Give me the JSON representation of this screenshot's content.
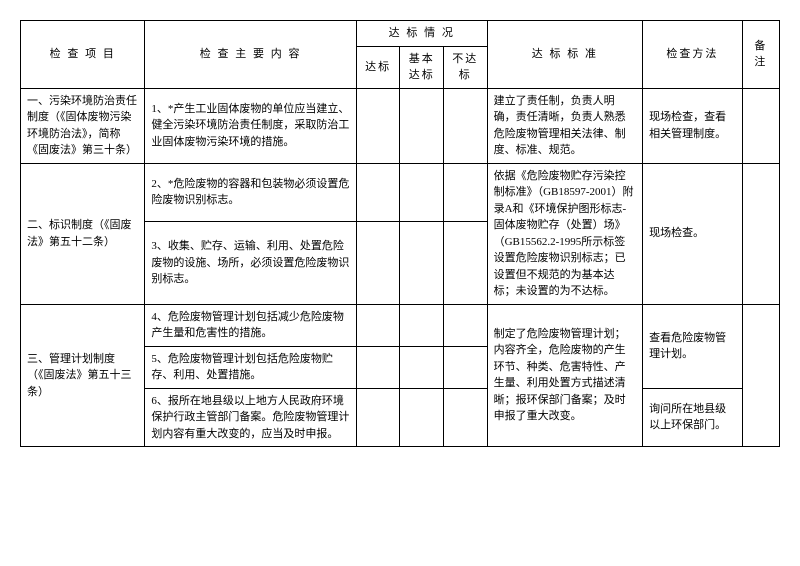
{
  "headers": {
    "project": "检 查 项 目",
    "content": "检 查 主 要 内 容",
    "statusGroup": "达 标 情 况",
    "status1": "达标",
    "status2": "基本达标",
    "status3": "不达标",
    "standard": "达 标 标 准",
    "method": "检查方法",
    "note": "备注"
  },
  "rows": {
    "r1": {
      "project": "一、污染环境防治责任制度（《固体废物污染环境防治法》，简称《固废法》第三十条）",
      "content": "1、*产生工业固体废物的单位应当建立、健全污染环境防治责任制度，采取防治工业固体废物污染环境的措施。",
      "standard": "建立了责任制，负责人明确，责任清晰，负责人熟悉危险废物管理相关法律、制度、标准、规范。",
      "method": "现场检查，查看相关管理制度。"
    },
    "r2": {
      "project": "二、标识制度（《固废法》第五十二条）",
      "content2a": "2、*危险废物的容器和包装物必须设置危险废物识别标志。",
      "content2b": "3、收集、贮存、运输、利用、处置危险废物的设施、场所，必须设置危险废物识别标志。",
      "standard": "依据《危险废物贮存污染控制标准》（GB18597-2001）附录A和《环境保护图形标志-固体废物贮存（处置）场》（GB15562.2-1995所示标签设置危险废物识别标志；已设置但不规范的为基本达标；未设置的为不达标。",
      "method": "现场检查。"
    },
    "r3": {
      "project": "三、管理计划制度（《固废法》第五十三条）",
      "content3a": "4、危险废物管理计划包括减少危险废物产生量和危害性的措施。",
      "content3b": "5、危险废物管理计划包括危险废物贮存、利用、处置措施。",
      "content3c": "6、报所在地县级以上地方人民政府环境保护行政主管部门备案。危险废物管理计划内容有重大改变的，应当及时申报。",
      "standard": "制定了危险废物管理计划；内容齐全，危险废物的产生环节、种类、危害特性、产生量、利用处置方式描述清晰；报环保部门备案；及时申报了重大改变。",
      "method3a": "查看危险废物管理计划。",
      "method3c": "询问所在地县级以上环保部门。"
    }
  }
}
